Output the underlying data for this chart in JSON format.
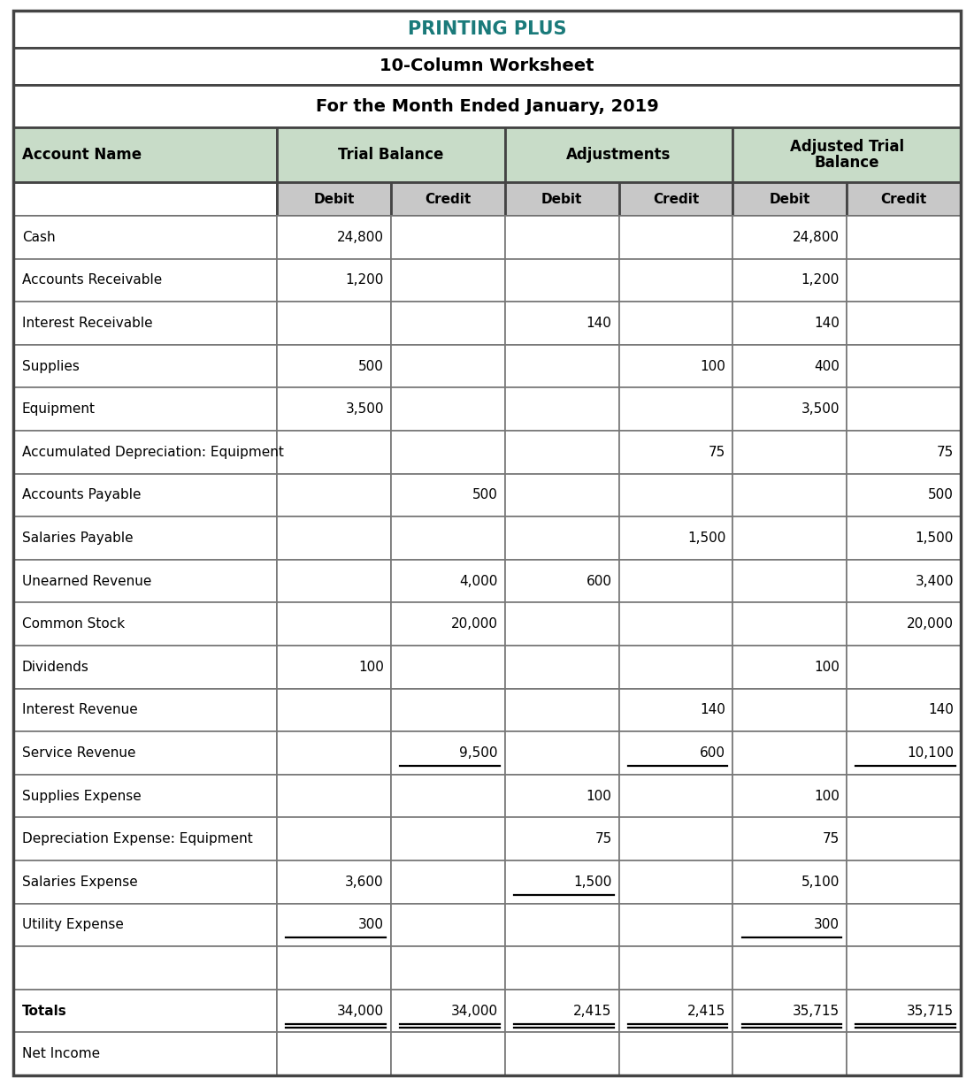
{
  "title1": "PRINTING PLUS",
  "title2": "10-Column Worksheet",
  "title3": "For the Month Ended January, 2019",
  "title1_color": "#1a7a7a",
  "header_bg": "#c8dcc8",
  "subheader_bg": "#c8c8c8",
  "col_headers": [
    "Debit",
    "Credit",
    "Debit",
    "Credit",
    "Debit",
    "Credit"
  ],
  "rows": [
    {
      "name": "Cash",
      "tb_d": "24,800",
      "tb_c": "",
      "adj_d": "",
      "adj_c": "",
      "atb_d": "24,800",
      "atb_c": "",
      "ul_tb_d": false,
      "ul_tb_c": false,
      "ul_adj_d": false,
      "ul_adj_c": false,
      "ul_atb_d": false,
      "ul_atb_c": false
    },
    {
      "name": "Accounts Receivable",
      "tb_d": "1,200",
      "tb_c": "",
      "adj_d": "",
      "adj_c": "",
      "atb_d": "1,200",
      "atb_c": "",
      "ul_tb_d": false,
      "ul_tb_c": false,
      "ul_adj_d": false,
      "ul_adj_c": false,
      "ul_atb_d": false,
      "ul_atb_c": false
    },
    {
      "name": "Interest Receivable",
      "tb_d": "",
      "tb_c": "",
      "adj_d": "140",
      "adj_c": "",
      "atb_d": "140",
      "atb_c": "",
      "ul_tb_d": false,
      "ul_tb_c": false,
      "ul_adj_d": false,
      "ul_adj_c": false,
      "ul_atb_d": false,
      "ul_atb_c": false
    },
    {
      "name": "Supplies",
      "tb_d": "500",
      "tb_c": "",
      "adj_d": "",
      "adj_c": "100",
      "atb_d": "400",
      "atb_c": "",
      "ul_tb_d": false,
      "ul_tb_c": false,
      "ul_adj_d": false,
      "ul_adj_c": false,
      "ul_atb_d": false,
      "ul_atb_c": false
    },
    {
      "name": "Equipment",
      "tb_d": "3,500",
      "tb_c": "",
      "adj_d": "",
      "adj_c": "",
      "atb_d": "3,500",
      "atb_c": "",
      "ul_tb_d": false,
      "ul_tb_c": false,
      "ul_adj_d": false,
      "ul_adj_c": false,
      "ul_atb_d": false,
      "ul_atb_c": false
    },
    {
      "name": "Accumulated Depreciation: Equipment",
      "tb_d": "",
      "tb_c": "",
      "adj_d": "",
      "adj_c": "75",
      "atb_d": "",
      "atb_c": "75",
      "ul_tb_d": false,
      "ul_tb_c": false,
      "ul_adj_d": false,
      "ul_adj_c": false,
      "ul_atb_d": false,
      "ul_atb_c": false
    },
    {
      "name": "Accounts Payable",
      "tb_d": "",
      "tb_c": "500",
      "adj_d": "",
      "adj_c": "",
      "atb_d": "",
      "atb_c": "500",
      "ul_tb_d": false,
      "ul_tb_c": false,
      "ul_adj_d": false,
      "ul_adj_c": false,
      "ul_atb_d": false,
      "ul_atb_c": false
    },
    {
      "name": "Salaries Payable",
      "tb_d": "",
      "tb_c": "",
      "adj_d": "",
      "adj_c": "1,500",
      "atb_d": "",
      "atb_c": "1,500",
      "ul_tb_d": false,
      "ul_tb_c": false,
      "ul_adj_d": false,
      "ul_adj_c": false,
      "ul_atb_d": false,
      "ul_atb_c": false
    },
    {
      "name": "Unearned Revenue",
      "tb_d": "",
      "tb_c": "4,000",
      "adj_d": "600",
      "adj_c": "",
      "atb_d": "",
      "atb_c": "3,400",
      "ul_tb_d": false,
      "ul_tb_c": false,
      "ul_adj_d": false,
      "ul_adj_c": false,
      "ul_atb_d": false,
      "ul_atb_c": false
    },
    {
      "name": "Common Stock",
      "tb_d": "",
      "tb_c": "20,000",
      "adj_d": "",
      "adj_c": "",
      "atb_d": "",
      "atb_c": "20,000",
      "ul_tb_d": false,
      "ul_tb_c": false,
      "ul_adj_d": false,
      "ul_adj_c": false,
      "ul_atb_d": false,
      "ul_atb_c": false
    },
    {
      "name": "Dividends",
      "tb_d": "100",
      "tb_c": "",
      "adj_d": "",
      "adj_c": "",
      "atb_d": "100",
      "atb_c": "",
      "ul_tb_d": false,
      "ul_tb_c": false,
      "ul_adj_d": false,
      "ul_adj_c": false,
      "ul_atb_d": false,
      "ul_atb_c": false
    },
    {
      "name": "Interest Revenue",
      "tb_d": "",
      "tb_c": "",
      "adj_d": "",
      "adj_c": "140",
      "atb_d": "",
      "atb_c": "140",
      "ul_tb_d": false,
      "ul_tb_c": false,
      "ul_adj_d": false,
      "ul_adj_c": false,
      "ul_atb_d": false,
      "ul_atb_c": false
    },
    {
      "name": "Service Revenue",
      "tb_d": "",
      "tb_c": "9,500",
      "adj_d": "",
      "adj_c": "600",
      "atb_d": "",
      "atb_c": "10,100",
      "ul_tb_d": false,
      "ul_tb_c": true,
      "ul_adj_d": false,
      "ul_adj_c": true,
      "ul_atb_d": false,
      "ul_atb_c": true
    },
    {
      "name": "Supplies Expense",
      "tb_d": "",
      "tb_c": "",
      "adj_d": "100",
      "adj_c": "",
      "atb_d": "100",
      "atb_c": "",
      "ul_tb_d": false,
      "ul_tb_c": false,
      "ul_adj_d": false,
      "ul_adj_c": false,
      "ul_atb_d": false,
      "ul_atb_c": false
    },
    {
      "name": "Depreciation Expense: Equipment",
      "tb_d": "",
      "tb_c": "",
      "adj_d": "75",
      "adj_c": "",
      "atb_d": "75",
      "atb_c": "",
      "ul_tb_d": false,
      "ul_tb_c": false,
      "ul_adj_d": false,
      "ul_adj_c": false,
      "ul_atb_d": false,
      "ul_atb_c": false
    },
    {
      "name": "Salaries Expense",
      "tb_d": "3,600",
      "tb_c": "",
      "adj_d": "1,500",
      "adj_c": "",
      "atb_d": "5,100",
      "atb_c": "",
      "ul_tb_d": false,
      "ul_tb_c": false,
      "ul_adj_d": true,
      "ul_adj_c": false,
      "ul_atb_d": false,
      "ul_atb_c": false
    },
    {
      "name": "Utility Expense",
      "tb_d": "300",
      "tb_c": "",
      "adj_d": "",
      "adj_c": "",
      "atb_d": "300",
      "atb_c": "",
      "ul_tb_d": true,
      "ul_tb_c": false,
      "ul_adj_d": false,
      "ul_adj_c": false,
      "ul_atb_d": true,
      "ul_atb_c": false
    },
    {
      "name": "",
      "tb_d": "",
      "tb_c": "",
      "adj_d": "",
      "adj_c": "",
      "atb_d": "",
      "atb_c": "",
      "ul_tb_d": false,
      "ul_tb_c": false,
      "ul_adj_d": false,
      "ul_adj_c": false,
      "ul_atb_d": false,
      "ul_atb_c": false
    },
    {
      "name": "Totals",
      "tb_d": "34,000",
      "tb_c": "34,000",
      "adj_d": "2,415",
      "adj_c": "2,415",
      "atb_d": "35,715",
      "atb_c": "35,715",
      "ul_tb_d": true,
      "ul_tb_c": true,
      "ul_adj_d": true,
      "ul_adj_c": true,
      "ul_atb_d": true,
      "ul_atb_c": true
    },
    {
      "name": "Net Income",
      "tb_d": "",
      "tb_c": "",
      "adj_d": "",
      "adj_c": "",
      "atb_d": "",
      "atb_c": "",
      "ul_tb_d": false,
      "ul_tb_c": false,
      "ul_adj_d": false,
      "ul_adj_c": false,
      "ul_atb_d": false,
      "ul_atb_c": false
    }
  ],
  "outer_border_color": "#444444",
  "grid_color": "#777777",
  "fig_width": 11.01,
  "fig_height": 12.28,
  "dpi": 100
}
